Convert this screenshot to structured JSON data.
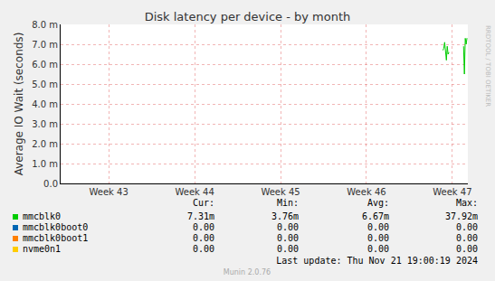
{
  "chart_data": {
    "type": "line",
    "title": "Disk latency per device - by month",
    "y_label": "Average IO Wait (seconds)",
    "x": [
      46.89,
      46.9,
      46.91,
      46.92,
      46.93,
      46.94,
      46.95,
      46.96,
      46.97,
      47.13,
      47.14,
      47.15,
      47.16,
      47.17
    ],
    "xlim": [
      42.44,
      47.18
    ],
    "xticks": [
      {
        "value": 43,
        "label": "Week 43"
      },
      {
        "value": 44,
        "label": "Week 44"
      },
      {
        "value": 45,
        "label": "Week 45"
      },
      {
        "value": 46,
        "label": "Week 46"
      },
      {
        "value": 47,
        "label": "Week 47"
      }
    ],
    "ylim": [
      0,
      0.008
    ],
    "yticks": [
      {
        "value": 0,
        "label": "0.0"
      },
      {
        "value": 0.001,
        "label": "1.0 m"
      },
      {
        "value": 0.002,
        "label": "2.0 m"
      },
      {
        "value": 0.003,
        "label": "3.0 m"
      },
      {
        "value": 0.004,
        "label": "4.0 m"
      },
      {
        "value": 0.005,
        "label": "5.0 m"
      },
      {
        "value": 0.006,
        "label": "6.0 m"
      },
      {
        "value": 0.007,
        "label": "7.0 m"
      },
      {
        "value": 0.008,
        "label": "8.0 m"
      }
    ],
    "grid": true,
    "stats_header": [
      "Cur:",
      "Min:",
      "Avg:",
      "Max:"
    ],
    "series": [
      {
        "name": "mmcblk0",
        "color": "#00cc00",
        "values": [
          0.0067,
          0.0068,
          0.0071,
          0.0066,
          0.0062,
          0.0069,
          0.0065,
          0.0066,
          null,
          0.0069,
          0.0055,
          0.0073,
          0.007,
          0.00731
        ],
        "stats": [
          "7.31m",
          "3.76m",
          "6.67m",
          "37.92m"
        ]
      },
      {
        "name": "mmcblk0boot0",
        "color": "#0066b3",
        "values": [
          null,
          null,
          null,
          null,
          null,
          null,
          null,
          null,
          null,
          null,
          null,
          null,
          null,
          null
        ],
        "stats": [
          "0.00",
          "0.00",
          "0.00",
          "0.00"
        ]
      },
      {
        "name": "mmcblk0boot1",
        "color": "#ff8000",
        "values": [
          null,
          null,
          null,
          null,
          null,
          null,
          null,
          null,
          null,
          null,
          null,
          null,
          null,
          null
        ],
        "stats": [
          "0.00",
          "0.00",
          "0.00",
          "0.00"
        ]
      },
      {
        "name": "nvme0n1",
        "color": "#ffcc00",
        "values": [
          null,
          null,
          null,
          null,
          null,
          null,
          null,
          null,
          null,
          null,
          null,
          null,
          null,
          null
        ],
        "stats": [
          "0.00",
          "0.00",
          "0.00",
          "0.00"
        ]
      }
    ],
    "footer": "Last update: Thu Nov 21 19:00:19 2024",
    "credit": "Munin 2.0.76",
    "side_text": "RRDTOOL / TOBI OETIKER"
  }
}
